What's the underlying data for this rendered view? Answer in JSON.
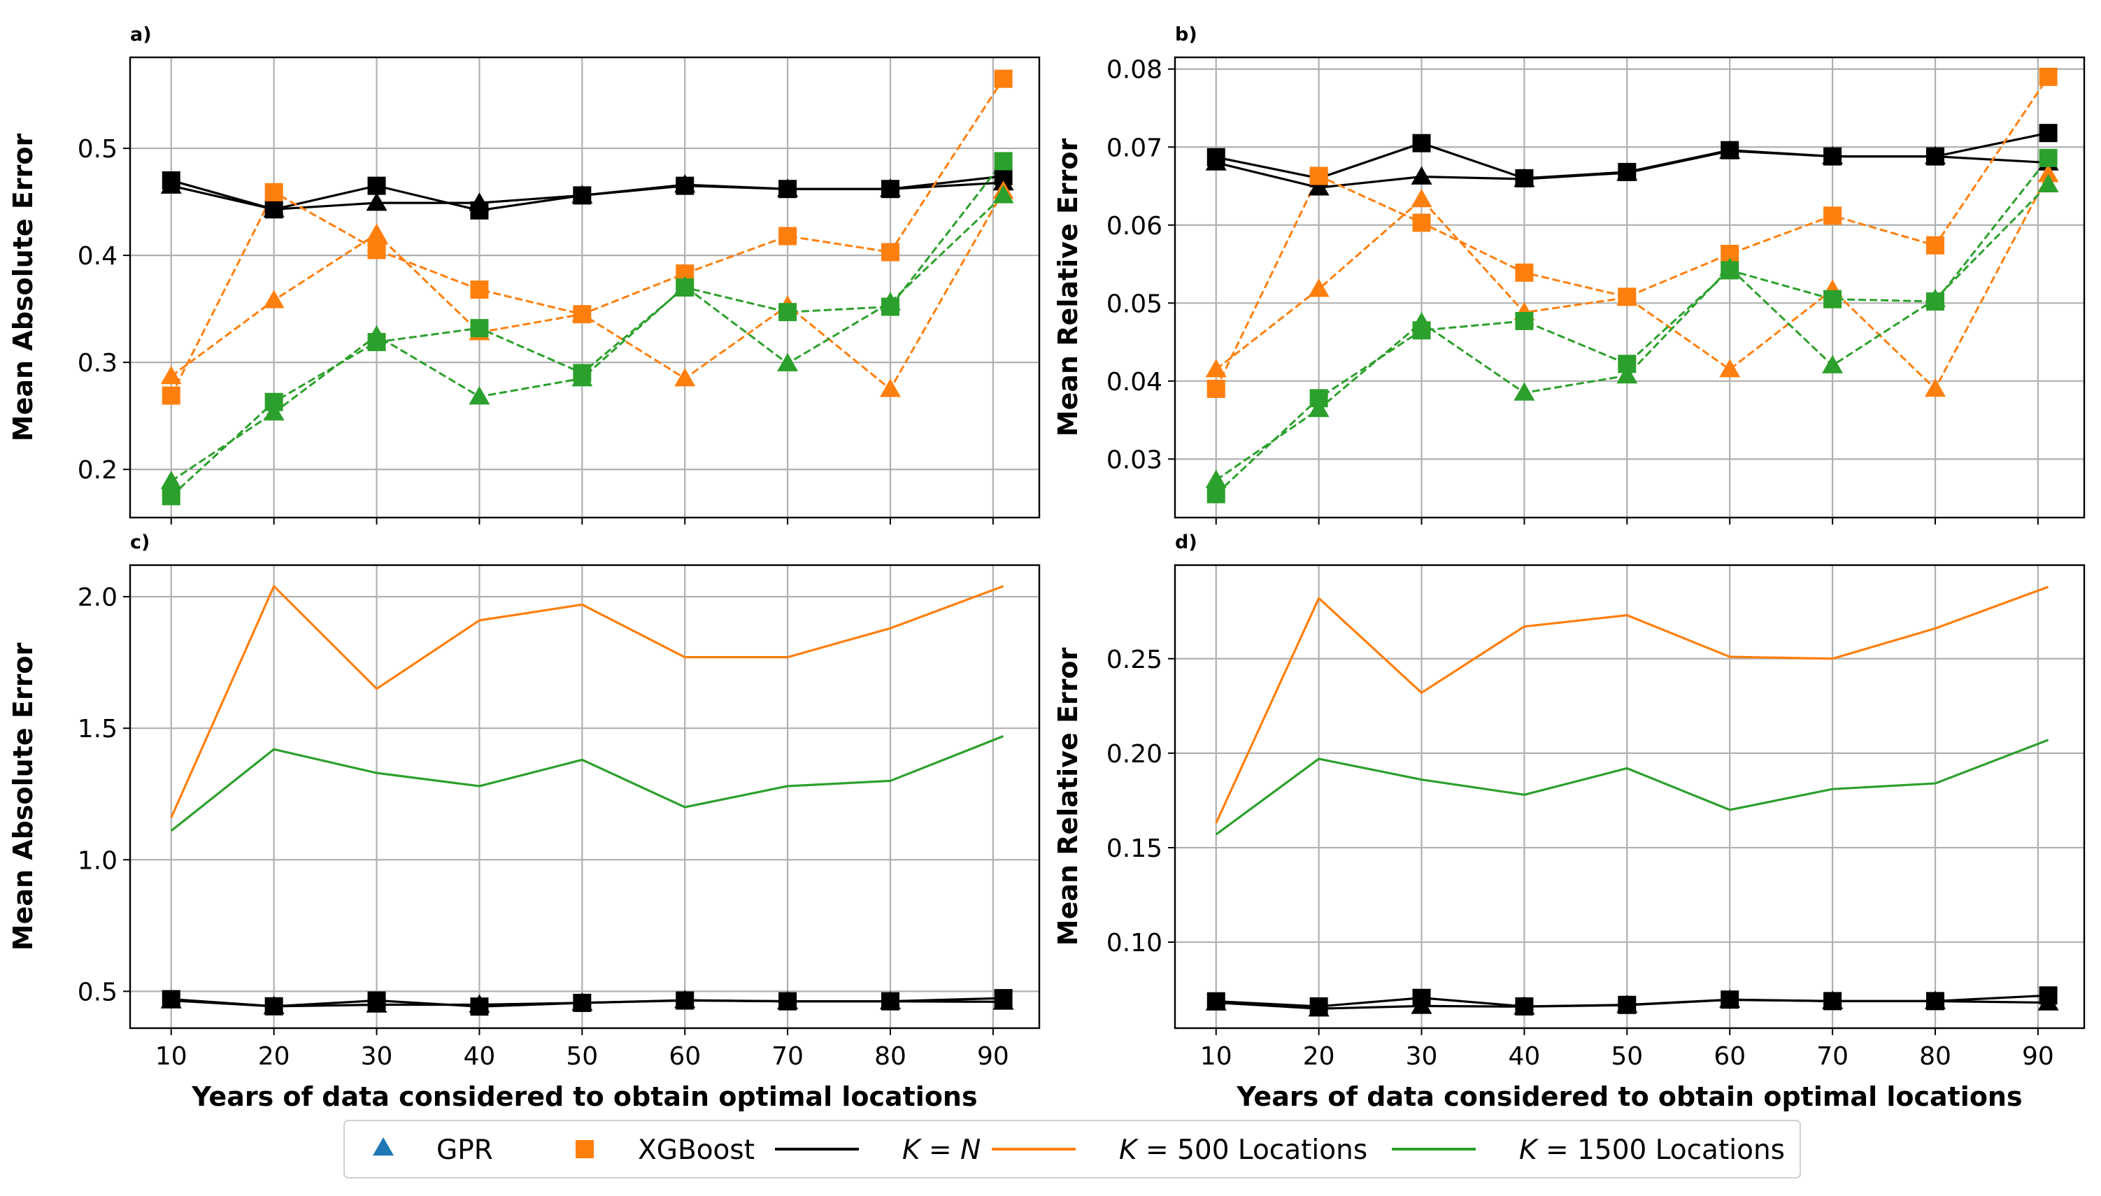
{
  "chart_data": {
    "type": "line",
    "x": [
      10,
      20,
      30,
      40,
      50,
      60,
      70,
      80,
      91
    ],
    "xticks": [
      10,
      20,
      30,
      40,
      50,
      60,
      70,
      80,
      90
    ],
    "xlabel": "Years of data considered to obtain optimal locations",
    "colors": {
      "N": "#000000",
      "K500": "#ff7f0e",
      "K1500": "#2ca02c",
      "GPR": "#1f77b4",
      "XGB": "#ff7f0e",
      "grid": "#b0b0b0"
    },
    "legend": {
      "position": "bottom-center",
      "items": [
        {
          "label": "GPR",
          "kind": "triangle",
          "color": "#1f77b4"
        },
        {
          "label": "XGBoost",
          "kind": "square",
          "color": "#ff7f0e"
        },
        {
          "label": "N",
          "prefix": "K = ",
          "kind": "line",
          "color": "#000000"
        },
        {
          "label": "500 Locations",
          "prefix": "K = ",
          "kind": "line",
          "color": "#ff7f0e"
        },
        {
          "label": "1500 Locations",
          "prefix": "K = ",
          "kind": "line",
          "color": "#2ca02c"
        }
      ]
    },
    "panels": [
      {
        "label": "a)",
        "ylabel": "Mean Absolute Error",
        "ylim": [
          0.155,
          0.585
        ],
        "yticks": [
          0.2,
          0.3,
          0.4,
          0.5
        ],
        "ytick_labels": [
          "0.2",
          "0.3",
          "0.4",
          "0.5"
        ],
        "show_xticks": false,
        "series": [
          {
            "group": "N",
            "model": "GPR",
            "style": "solid",
            "marker": "triangle",
            "values": [
              0.465,
              0.443,
              0.449,
              0.449,
              0.456,
              0.466,
              0.462,
              0.462,
              0.468
            ]
          },
          {
            "group": "N",
            "model": "XGBoost",
            "style": "solid",
            "marker": "square",
            "values": [
              0.47,
              0.443,
              0.465,
              0.442,
              0.456,
              0.465,
              0.462,
              0.462,
              0.474
            ]
          },
          {
            "group": "K500",
            "model": "GPR",
            "style": "dashed",
            "marker": "triangle",
            "values": [
              0.287,
              0.358,
              0.42,
              0.328,
              0.345,
              0.285,
              0.353,
              0.275,
              0.46
            ]
          },
          {
            "group": "K500",
            "model": "XGBoost",
            "style": "dashed",
            "marker": "square",
            "values": [
              0.269,
              0.459,
              0.405,
              0.368,
              0.345,
              0.383,
              0.418,
              0.403,
              0.565
            ]
          },
          {
            "group": "K1500",
            "model": "GPR",
            "style": "dashed",
            "marker": "triangle",
            "values": [
              0.189,
              0.253,
              0.325,
              0.268,
              0.285,
              0.371,
              0.299,
              0.356,
              0.456
            ]
          },
          {
            "group": "K1500",
            "model": "XGBoost",
            "style": "dashed",
            "marker": "square",
            "values": [
              0.175,
              0.263,
              0.319,
              0.332,
              0.29,
              0.37,
              0.347,
              0.352,
              0.488
            ]
          }
        ]
      },
      {
        "label": "b)",
        "ylabel": "Mean Relative Error",
        "ylim": [
          0.0225,
          0.0815
        ],
        "yticks": [
          0.03,
          0.04,
          0.05,
          0.06,
          0.07,
          0.08
        ],
        "ytick_labels": [
          "0.03",
          "0.04",
          "0.05",
          "0.06",
          "0.07",
          "0.08"
        ],
        "show_xticks": false,
        "series": [
          {
            "group": "N",
            "model": "GPR",
            "style": "solid",
            "marker": "triangle",
            "values": [
              0.068,
              0.0648,
              0.0662,
              0.0659,
              0.0667,
              0.0695,
              0.0688,
              0.0688,
              0.068
            ]
          },
          {
            "group": "N",
            "model": "XGBoost",
            "style": "solid",
            "marker": "square",
            "values": [
              0.0687,
              0.066,
              0.0705,
              0.066,
              0.0668,
              0.0696,
              0.0688,
              0.0688,
              0.0718
            ]
          },
          {
            "group": "K500",
            "model": "GPR",
            "style": "dashed",
            "marker": "triangle",
            "values": [
              0.0415,
              0.0518,
              0.0633,
              0.0488,
              0.0507,
              0.0415,
              0.0517,
              0.039,
              0.0665
            ]
          },
          {
            "group": "K500",
            "model": "XGBoost",
            "style": "dashed",
            "marker": "square",
            "values": [
              0.039,
              0.0663,
              0.0603,
              0.0539,
              0.0508,
              0.0563,
              0.0612,
              0.0574,
              0.079
            ]
          },
          {
            "group": "K1500",
            "model": "GPR",
            "style": "dashed",
            "marker": "triangle",
            "values": [
              0.0273,
              0.0364,
              0.0475,
              0.0385,
              0.0407,
              0.0545,
              0.042,
              0.0505,
              0.0652
            ]
          },
          {
            "group": "K1500",
            "model": "XGBoost",
            "style": "dashed",
            "marker": "square",
            "values": [
              0.0255,
              0.0378,
              0.0465,
              0.0477,
              0.0422,
              0.0542,
              0.0505,
              0.0502,
              0.0686
            ]
          }
        ]
      },
      {
        "label": "c)",
        "ylabel": "Mean Absolute Error",
        "ylim": [
          0.36,
          2.12
        ],
        "yticks": [
          0.5,
          1.0,
          1.5,
          2.0
        ],
        "ytick_labels": [
          "0.5",
          "1.0",
          "1.5",
          "2.0"
        ],
        "show_xticks": true,
        "series": [
          {
            "group": "K500",
            "style": "solid",
            "marker": "none",
            "values": [
              1.16,
              2.04,
              1.65,
              1.91,
              1.97,
              1.77,
              1.77,
              1.88,
              2.04
            ]
          },
          {
            "group": "K1500",
            "style": "solid",
            "marker": "none",
            "values": [
              1.11,
              1.42,
              1.33,
              1.28,
              1.38,
              1.2,
              1.28,
              1.3,
              1.47
            ]
          },
          {
            "group": "N",
            "model": "GPR",
            "style": "solid",
            "marker": "triangle",
            "values": [
              0.465,
              0.443,
              0.449,
              0.449,
              0.456,
              0.466,
              0.462,
              0.462,
              0.46
            ]
          },
          {
            "group": "N",
            "model": "XGBoost",
            "style": "solid",
            "marker": "square",
            "values": [
              0.47,
              0.443,
              0.465,
              0.442,
              0.456,
              0.465,
              0.462,
              0.462,
              0.474
            ]
          }
        ]
      },
      {
        "label": "d)",
        "ylabel": "Mean Relative Error",
        "ylim": [
          0.0545,
          0.2995
        ],
        "yticks": [
          0.1,
          0.15,
          0.2,
          0.25
        ],
        "ytick_labels": [
          "0.10",
          "0.15",
          "0.20",
          "0.25"
        ],
        "show_xticks": true,
        "series": [
          {
            "group": "K500",
            "style": "solid",
            "marker": "none",
            "values": [
              0.163,
              0.282,
              0.232,
              0.267,
              0.273,
              0.251,
              0.25,
              0.266,
              0.288
            ]
          },
          {
            "group": "K1500",
            "style": "solid",
            "marker": "none",
            "values": [
              0.157,
              0.197,
              0.186,
              0.178,
              0.192,
              0.17,
              0.181,
              0.184,
              0.207
            ]
          },
          {
            "group": "N",
            "model": "GPR",
            "style": "solid",
            "marker": "triangle",
            "values": [
              0.068,
              0.0648,
              0.0662,
              0.0659,
              0.0667,
              0.0695,
              0.0688,
              0.0688,
              0.068
            ]
          },
          {
            "group": "N",
            "model": "XGBoost",
            "style": "solid",
            "marker": "square",
            "values": [
              0.0687,
              0.066,
              0.0705,
              0.066,
              0.0668,
              0.0696,
              0.0688,
              0.0688,
              0.0718
            ]
          }
        ]
      }
    ]
  }
}
